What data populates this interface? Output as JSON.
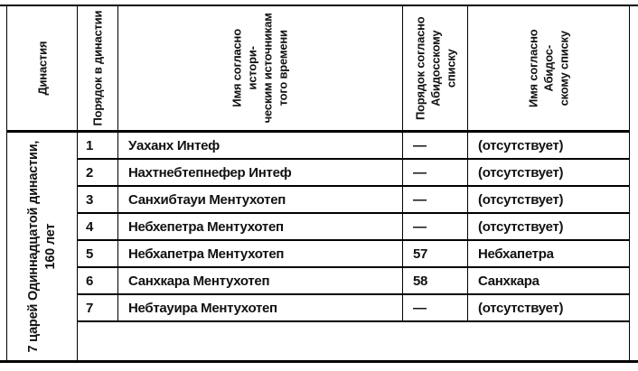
{
  "colors": {
    "border": "#000000",
    "background": "#ffffff",
    "text": "#111111"
  },
  "table": {
    "headers": {
      "dynasty": "Династия",
      "order_in_dynasty": "Порядок в династии",
      "name_historical": "Имя согласно истори-\nческим источникам\nтого времени",
      "order_abydos": "Порядок согласно\nАбидосскому списку",
      "name_abydos": "Имя согласно Абидос-\nскому списку"
    },
    "dynasty_label": "7 царей Одиннадцатой династии,\n160 лет",
    "rows": [
      {
        "order": "1",
        "name": "Уаханх Интеф",
        "abydos_order": "—",
        "abydos_name": "(отсутствует)"
      },
      {
        "order": "2",
        "name": "Нахтнебтепнефер Интеф",
        "abydos_order": "—",
        "abydos_name": "(отсутствует)"
      },
      {
        "order": "3",
        "name": "Санхибтауи Ментухотеп",
        "abydos_order": "—",
        "abydos_name": "(отсутствует)"
      },
      {
        "order": "4",
        "name": "Небхепетра Ментухотеп",
        "abydos_order": "—",
        "abydos_name": "(отсутствует)"
      },
      {
        "order": "5",
        "name": "Небхапетра Ментухотеп",
        "abydos_order": "57",
        "abydos_name": "Небхапетра"
      },
      {
        "order": "6",
        "name": "Санхкара Ментухотеп",
        "abydos_order": "58",
        "abydos_name": "Санхкара"
      },
      {
        "order": "7",
        "name": "Небтауира Ментухотеп",
        "abydos_order": "—",
        "abydos_name": "(отсутствует)"
      }
    ]
  }
}
